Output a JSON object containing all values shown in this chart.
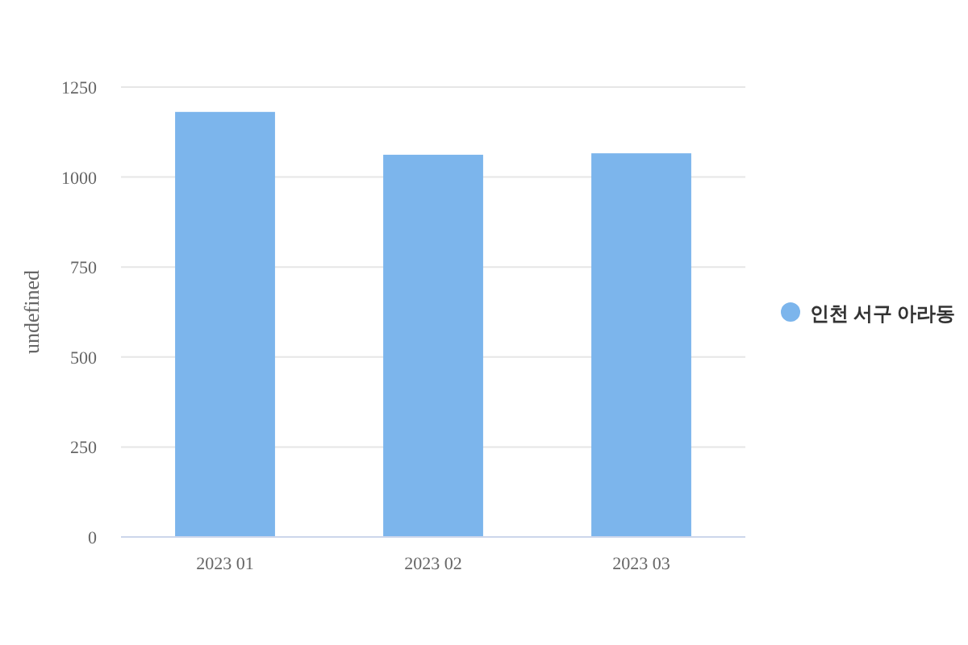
{
  "chart_data": {
    "type": "bar",
    "ylabel": "undefined",
    "categories": [
      "2023 01",
      "2023 02",
      "2023 03"
    ],
    "series": [
      {
        "name": "인천 서구 아라동",
        "color": "#7cb5ec",
        "values": [
          1181,
          1062,
          1066
        ]
      }
    ],
    "ylim": [
      0,
      1250
    ],
    "yticks": [
      0,
      250,
      500,
      750,
      1000,
      1250
    ],
    "grid": "y",
    "legend": "right"
  }
}
